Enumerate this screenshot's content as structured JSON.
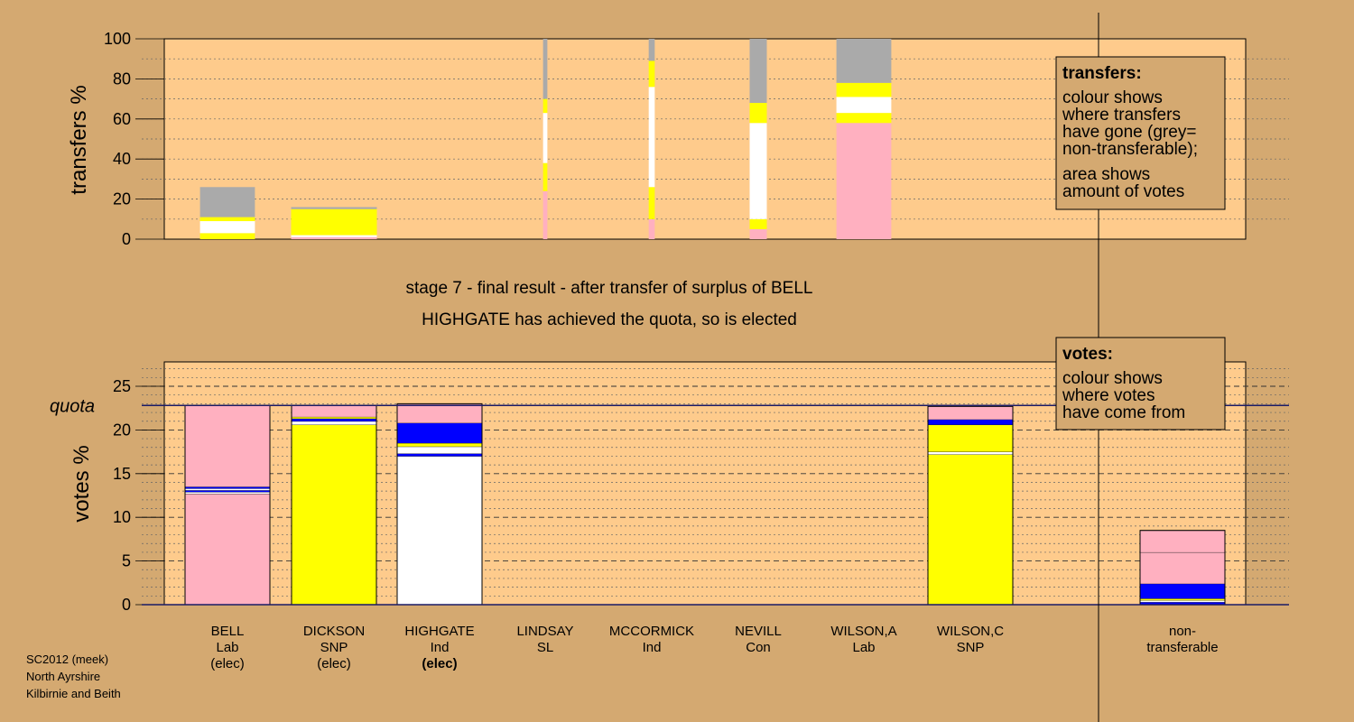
{
  "stage_line1": "stage 7 - final result - after transfer of surplus of BELL",
  "stage_line2": "HIGHGATE has achieved the quota, so is elected",
  "info_lines": [
    "SC2012 (meek)",
    "North Ayrshire",
    "Kilbirnie and Beith"
  ],
  "transfers_legend": {
    "title": "transfers:",
    "lines": [
      "colour shows",
      "where transfers",
      "have gone (grey=",
      "non-transferable);",
      "area shows",
      "amount of votes"
    ]
  },
  "votes_legend": {
    "title": "votes:",
    "lines": [
      "colour shows",
      "where votes",
      "have come from"
    ]
  },
  "colors": {
    "background": "#d4a971",
    "plot_area": "#fecb8c",
    "Lab": "#ffb0c0",
    "SNP": "#ffff00",
    "Ind": "#ffffff",
    "Con": "#0000ff",
    "SL": "#aa0000",
    "non_transferable": "#aaaaaa"
  },
  "chart_data": [
    {
      "type": "bar",
      "name": "transfers",
      "ylabel": "transfers %",
      "ylim": [
        0,
        100
      ],
      "yticks": [
        0,
        20,
        40,
        60,
        80,
        100
      ],
      "grid": true,
      "columns": [
        {
          "label": "BELL",
          "width": 0.32,
          "segments": [
            {
              "color": "#ffff00",
              "from": 0,
              "to": 3
            },
            {
              "color": "#ffffff",
              "from": 3,
              "to": 9
            },
            {
              "color": "#ffff00",
              "from": 9,
              "to": 11
            },
            {
              "color": "#aaaaaa",
              "from": 11,
              "to": 26
            }
          ]
        },
        {
          "label": "DICKSON",
          "width": 0.5,
          "segments": [
            {
              "color": "#ffb0c0",
              "from": 0,
              "to": 1
            },
            {
              "color": "#ffffff",
              "from": 1,
              "to": 2
            },
            {
              "color": "#ffff00",
              "from": 2,
              "to": 15
            },
            {
              "color": "#aaaaaa",
              "from": 15,
              "to": 16
            }
          ]
        },
        {
          "label": "LINDSAY",
          "width": 0.025,
          "segments": [
            {
              "color": "#ffb0c0",
              "from": 0,
              "to": 24
            },
            {
              "color": "#ffff00",
              "from": 24,
              "to": 38
            },
            {
              "color": "#ffffff",
              "from": 38,
              "to": 63
            },
            {
              "color": "#ffff00",
              "from": 63,
              "to": 70
            },
            {
              "color": "#aaaaaa",
              "from": 70,
              "to": 100
            }
          ]
        },
        {
          "label": "MCCORMICK",
          "width": 0.035,
          "segments": [
            {
              "color": "#ffb0c0",
              "from": 0,
              "to": 10
            },
            {
              "color": "#ffff00",
              "from": 10,
              "to": 26
            },
            {
              "color": "#ffffff",
              "from": 26,
              "to": 76
            },
            {
              "color": "#ffff00",
              "from": 76,
              "to": 89
            },
            {
              "color": "#aaaaaa",
              "from": 89,
              "to": 100
            }
          ]
        },
        {
          "label": "NEVILL",
          "width": 0.1,
          "segments": [
            {
              "color": "#ffb0c0",
              "from": 0,
              "to": 5
            },
            {
              "color": "#ffff00",
              "from": 5,
              "to": 10
            },
            {
              "color": "#ffffff",
              "from": 10,
              "to": 58
            },
            {
              "color": "#ffff00",
              "from": 58,
              "to": 68
            },
            {
              "color": "#aaaaaa",
              "from": 68,
              "to": 100
            }
          ]
        },
        {
          "label": "WILSON,A",
          "width": 0.32,
          "segments": [
            {
              "color": "#ffb0c0",
              "from": 0,
              "to": 58
            },
            {
              "color": "#ffff00",
              "from": 58,
              "to": 63
            },
            {
              "color": "#ffffff",
              "from": 63,
              "to": 71
            },
            {
              "color": "#ffff00",
              "from": 71,
              "to": 78
            },
            {
              "color": "#aaaaaa",
              "from": 78,
              "to": 100
            }
          ]
        }
      ]
    },
    {
      "type": "bar",
      "name": "votes",
      "ylabel": "votes %",
      "ylim": [
        0,
        25
      ],
      "yticks": [
        0,
        5,
        10,
        15,
        20,
        25
      ],
      "quota": 22.8,
      "quota_label": "quota",
      "grid": true,
      "candidates": [
        {
          "name": "BELL",
          "party": "Lab",
          "status": "(elec)",
          "status_bold": false,
          "segments": [
            {
              "color": "#ffb0c0",
              "from": 0,
              "to": 12.7
            },
            {
              "color": "#ffffff",
              "from": 12.7,
              "to": 12.9
            },
            {
              "color": "#0000ff",
              "from": 12.9,
              "to": 13.1
            },
            {
              "color": "#ffffff",
              "from": 13.1,
              "to": 13.3
            },
            {
              "color": "#0000ff",
              "from": 13.3,
              "to": 13.5
            },
            {
              "color": "#ffb0c0",
              "from": 13.5,
              "to": 22.8
            }
          ]
        },
        {
          "name": "DICKSON",
          "party": "SNP",
          "status": "(elec)",
          "status_bold": false,
          "segments": [
            {
              "color": "#ffff00",
              "from": 0,
              "to": 20.6
            },
            {
              "color": "#ffffff",
              "from": 20.6,
              "to": 21.0
            },
            {
              "color": "#0000ff",
              "from": 21.0,
              "to": 21.3
            },
            {
              "color": "#ffff00",
              "from": 21.3,
              "to": 21.5
            },
            {
              "color": "#ffb0c0",
              "from": 21.5,
              "to": 22.8
            }
          ]
        },
        {
          "name": "HIGHGATE",
          "party": "Ind",
          "status": "(elec)",
          "status_bold": true,
          "segments": [
            {
              "color": "#ffffff",
              "from": 0,
              "to": 17.0
            },
            {
              "color": "#0000ff",
              "from": 17.0,
              "to": 17.3
            },
            {
              "color": "#ffffff",
              "from": 17.3,
              "to": 18.1
            },
            {
              "color": "#ffff00",
              "from": 18.1,
              "to": 18.5
            },
            {
              "color": "#0000ff",
              "from": 18.5,
              "to": 20.8
            },
            {
              "color": "#ffb0c0",
              "from": 20.8,
              "to": 23.0
            }
          ]
        },
        {
          "name": "LINDSAY",
          "party": "SL",
          "status": "",
          "status_bold": false,
          "segments": []
        },
        {
          "name": "MCCORMICK",
          "party": "Ind",
          "status": "",
          "status_bold": false,
          "segments": []
        },
        {
          "name": "NEVILL",
          "party": "Con",
          "status": "",
          "status_bold": false,
          "segments": []
        },
        {
          "name": "WILSON,A",
          "party": "Lab",
          "status": "",
          "status_bold": false,
          "segments": []
        },
        {
          "name": "WILSON,C",
          "party": "SNP",
          "status": "",
          "status_bold": false,
          "segments": [
            {
              "color": "#ffff00",
              "from": 0,
              "to": 17.2
            },
            {
              "color": "#ffffff",
              "from": 17.2,
              "to": 17.5
            },
            {
              "color": "#ffff00",
              "from": 17.5,
              "to": 20.6
            },
            {
              "color": "#0000ff",
              "from": 20.6,
              "to": 21.2
            },
            {
              "color": "#ffb0c0",
              "from": 21.2,
              "to": 22.7
            }
          ]
        }
      ],
      "nontransferable": {
        "name": "non-",
        "party": "transferable",
        "segments": [
          {
            "color": "#0000ff",
            "from": 0,
            "to": 0.3
          },
          {
            "color": "#ffffff",
            "from": 0.3,
            "to": 0.5
          },
          {
            "color": "#ffff00",
            "from": 0.5,
            "to": 0.7
          },
          {
            "color": "#0000ff",
            "from": 0.7,
            "to": 2.4
          },
          {
            "color": "#ffb0c0",
            "from": 2.4,
            "to": 6.0
          },
          {
            "color": "#ffb0c0",
            "from": 6.0,
            "to": 8.5
          }
        ]
      }
    }
  ]
}
